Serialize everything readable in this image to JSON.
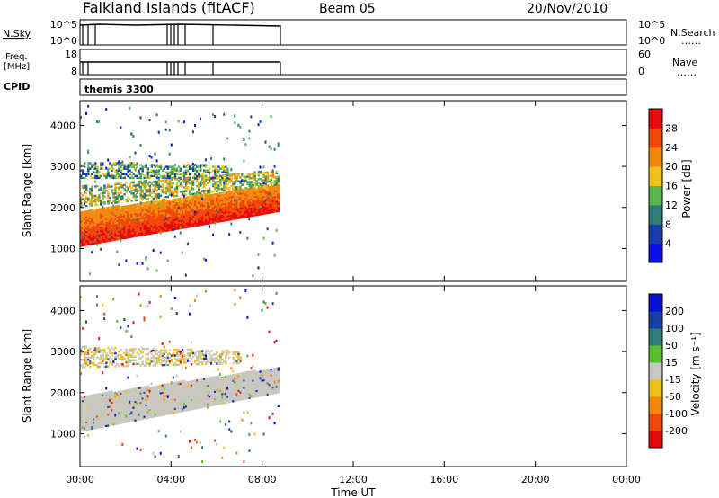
{
  "header": {
    "station": "Falkland Islands (fitACF)",
    "beam": "Beam 05",
    "date": "20/Nov/2010"
  },
  "status_panels": {
    "nsky_label": "N.Sky",
    "nsky_ticks": [
      "10^5",
      "10^0"
    ],
    "nsearch_label": "N.Search",
    "nsearch_ticks": [
      "10^5",
      "10^0"
    ],
    "freq_label_top": "Freq.",
    "freq_label_unit": "[MHz]",
    "freq_ticks": [
      "18",
      "8"
    ],
    "nave_label": "Nave",
    "nave_ticks": [
      "60",
      "0"
    ],
    "cpid_label": "CPID",
    "cpid_value": "themis 3300"
  },
  "colors": {
    "power_scale": [
      "#0a10e6",
      "#1a3ea8",
      "#2e7e78",
      "#58b64e",
      "#f0c21c",
      "#f28a12",
      "#f04a0a",
      "#e40c0c"
    ],
    "velocity_scale": [
      "#e00c0c",
      "#f04a0a",
      "#f28a12",
      "#f0c21c",
      "#c8c8c0",
      "#58c02e",
      "#2e7e78",
      "#1a3ea8",
      "#0a10d2"
    ]
  },
  "chart_data": [
    {
      "type": "heatmap",
      "name": "power",
      "ylabel": "Slant Range [km]",
      "yticks": [
        "4000",
        "3000",
        "2000",
        "1000"
      ],
      "ylim": [
        200,
        4600
      ],
      "colorbar_label": "Power [dB]",
      "colorbar_ticks": [
        "28",
        "24",
        "20",
        "16",
        "12",
        "8",
        "4"
      ],
      "colorbar_range": [
        0,
        32
      ],
      "coverage_hours": [
        0.0,
        8.75
      ],
      "bands": [
        {
          "start_h": 0.0,
          "end_h": 8.75,
          "range_start_km": [
            1050,
            1900
          ],
          "range_end_km": [
            1900,
            2550
          ],
          "level": "high"
        },
        {
          "start_h": 0.0,
          "end_h": 8.75,
          "range_start_km": [
            2000,
            2500
          ],
          "range_end_km": [
            2550,
            2900
          ],
          "level": "medium"
        },
        {
          "start_h": 0.0,
          "end_h": 6.5,
          "range_start_km": [
            2700,
            3100
          ],
          "range_end_km": [
            2700,
            3000
          ],
          "level": "low"
        }
      ]
    },
    {
      "type": "heatmap",
      "name": "velocity",
      "ylabel": "Slant Range [km]",
      "yticks": [
        "4000",
        "3000",
        "2000",
        "1000"
      ],
      "ylim": [
        200,
        4600
      ],
      "colorbar_label": "Velocity [m s⁻¹]",
      "colorbar_ticks": [
        "200",
        "100",
        "50",
        "15",
        "-15",
        "-50",
        "-100",
        "-200"
      ],
      "coverage_hours": [
        0.0,
        8.75
      ],
      "bands": [
        {
          "start_h": 0.0,
          "end_h": 8.75,
          "range_start_km": [
            1050,
            1900
          ],
          "range_end_km": [
            2000,
            2600
          ],
          "level": "near-zero"
        },
        {
          "start_h": 0.0,
          "end_h": 7.0,
          "range_start_km": [
            2600,
            3100
          ],
          "range_end_km": [
            2700,
            3000
          ],
          "level": "mixed"
        }
      ]
    }
  ],
  "time_axis": {
    "xlabel": "Time UT",
    "ticks": [
      "00:00",
      "04:00",
      "08:00",
      "12:00",
      "16:00",
      "20:00",
      "00:00"
    ],
    "xlim_hours": [
      0,
      24
    ]
  }
}
